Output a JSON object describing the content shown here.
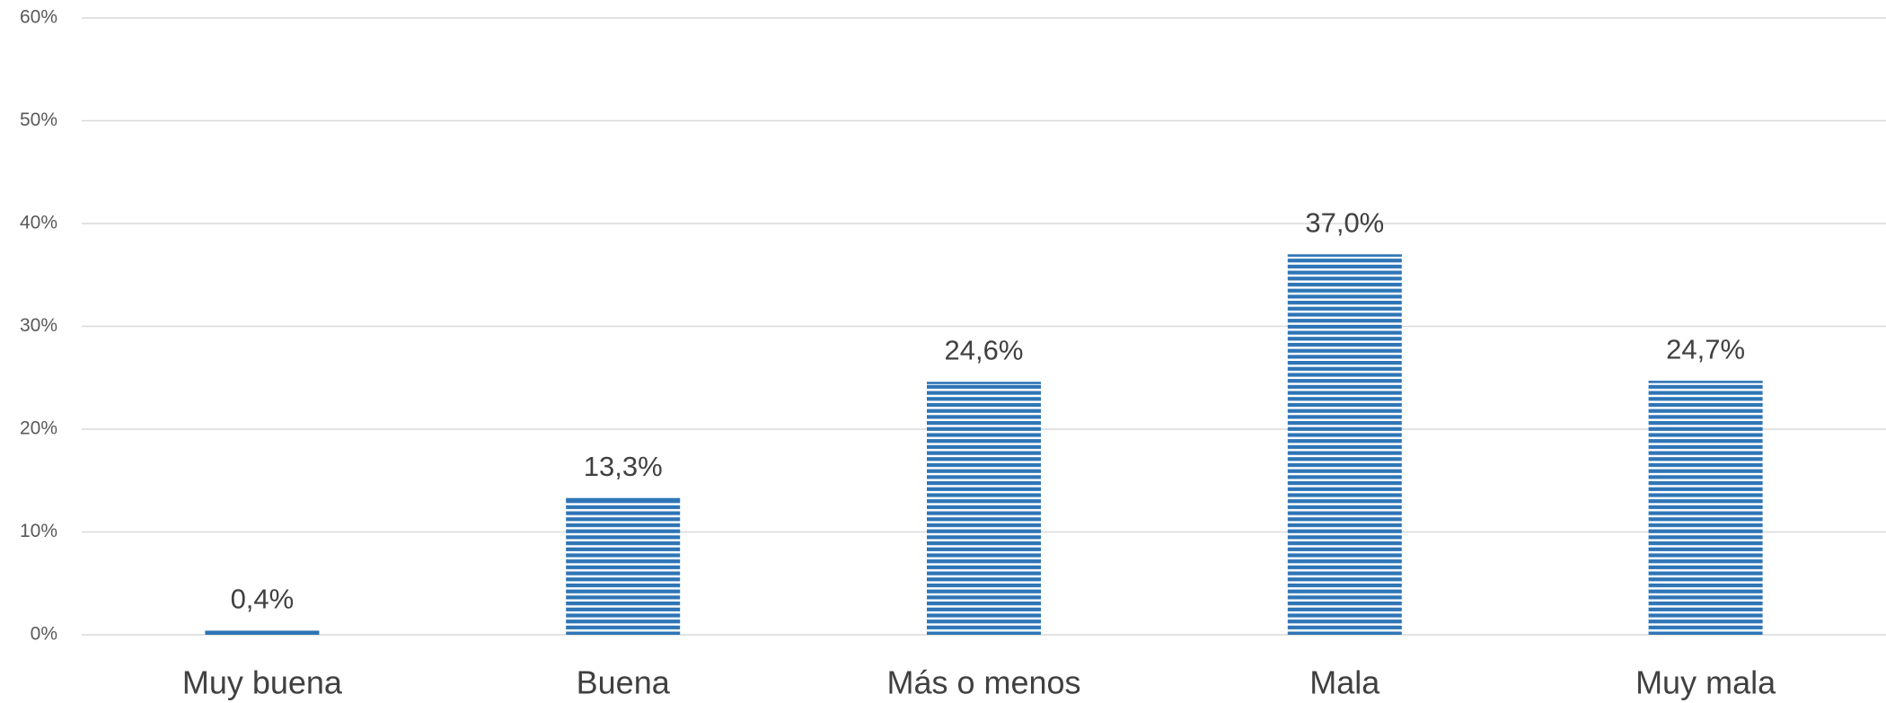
{
  "chart_data": {
    "type": "bar",
    "categories": [
      "Muy buena",
      "Buena",
      "Más o menos",
      "Mala",
      "Muy mala"
    ],
    "values": [
      0.4,
      13.3,
      24.6,
      37.0,
      24.7
    ],
    "value_labels": [
      "0,4%",
      "13,3%",
      "24,6%",
      "37,0%",
      "24,7%"
    ],
    "color": "#2e75b6",
    "ylim": [
      0,
      60
    ],
    "yticks": [
      {
        "value": 0,
        "label": "0%"
      },
      {
        "value": 10,
        "label": "10%"
      },
      {
        "value": 20,
        "label": "20%"
      },
      {
        "value": 30,
        "label": "30%"
      },
      {
        "value": 40,
        "label": "40%"
      },
      {
        "value": 50,
        "label": "50%"
      },
      {
        "value": 60,
        "label": "60%"
      }
    ],
    "grid": true
  }
}
